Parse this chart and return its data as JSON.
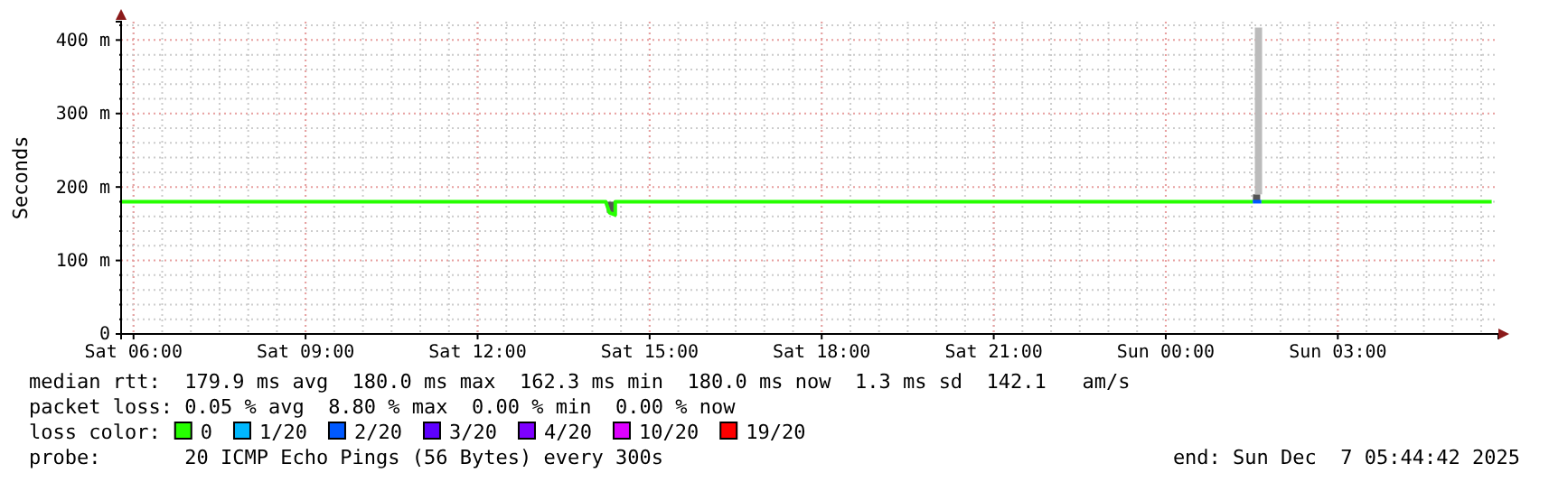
{
  "chart_data": {
    "type": "line",
    "ylabel": "Seconds",
    "xlim": [
      "2025-12-06T05:47",
      "2025-12-07T05:48"
    ],
    "xticks": [
      {
        "value": "2025-12-06T06:00",
        "label": "Sat 06:00"
      },
      {
        "value": "2025-12-06T09:00",
        "label": "Sat 09:00"
      },
      {
        "value": "2025-12-06T12:00",
        "label": "Sat 12:00"
      },
      {
        "value": "2025-12-06T15:00",
        "label": "Sat 15:00"
      },
      {
        "value": "2025-12-06T18:00",
        "label": "Sat 18:00"
      },
      {
        "value": "2025-12-06T21:00",
        "label": "Sat 21:00"
      },
      {
        "value": "2025-12-07T00:00",
        "label": "Sun 00:00"
      },
      {
        "value": "2025-12-07T03:00",
        "label": "Sun 03:00"
      }
    ],
    "ylim": [
      0,
      425
    ],
    "yticks": [
      0,
      {
        "value": 20,
        "label": null
      },
      {
        "value": 40,
        "label": null
      },
      {
        "value": 60,
        "label": null
      },
      {
        "value": 80,
        "label": null
      },
      {
        "value": 100,
        "label": "100 m"
      },
      {
        "value": 120,
        "label": null
      },
      {
        "value": 140,
        "label": null
      },
      {
        "value": 160,
        "label": null
      },
      {
        "value": 180,
        "label": null
      },
      {
        "value": 200,
        "label": "200 m"
      },
      {
        "value": 220,
        "label": null
      },
      {
        "value": 240,
        "label": null
      },
      {
        "value": 260,
        "label": null
      },
      {
        "value": 280,
        "label": null
      },
      {
        "value": 300,
        "label": "300 m"
      },
      {
        "value": 320,
        "label": null
      },
      {
        "value": 340,
        "label": null
      },
      {
        "value": 360,
        "label": null
      },
      {
        "value": 380,
        "label": null
      },
      {
        "value": 400,
        "label": "400 m"
      },
      {
        "value": 420,
        "label": null
      }
    ],
    "grid": true,
    "legend": "bottom",
    "legend_title": "loss color:",
    "series": [
      {
        "type": "bar",
        "x": [
          "2025-12-06T14:19",
          "2025-12-07T01:35",
          "2025-12-07T01:37"
        ],
        "base": [
          165,
          180,
          190
        ],
        "values": [
          15,
          10,
          227
        ],
        "colors": [
          "#555555",
          "#555555",
          "#bbbbbb"
        ]
      },
      {
        "name": "0",
        "color": "#26ff00",
        "x": [
          "2025-12-06T05:47",
          "2025-12-06T14:14",
          "2025-12-06T14:18",
          "2025-12-06T14:24",
          "2025-12-06T14:24",
          "2025-12-07T01:31",
          "2025-12-07T01:35",
          "2025-12-07T01:40",
          "2025-12-07T05:41"
        ],
        "values": [
          180,
          180,
          165,
          162,
          180,
          180,
          null,
          180,
          180
        ]
      },
      {
        "name": "1/20",
        "color": "#00b8ff"
      },
      {
        "name": "2/20",
        "color": "#0059ff",
        "x": [
          "2025-12-07T01:31",
          "2025-12-07T01:40"
        ],
        "values": [
          180,
          180
        ]
      },
      {
        "name": "3/20",
        "color": "#5e00ff"
      },
      {
        "name": "4/20",
        "color": "#7e00ff"
      },
      {
        "name": "10/20",
        "color": "#dd00ff"
      },
      {
        "name": "19/20",
        "color": "#ff0000"
      }
    ],
    "annotations": [
      "median rtt:  179.9 ms avg  180.0 ms max  162.3 ms min  180.0 ms now  1.3 ms sd  142.1   am/s",
      "packet loss: 0.05 % avg  8.80 % max  0.00 % min  0.00 % now",
      "probe:       20 ICMP Echo Pings (56 Bytes) every 300s",
      "end: Sun Dec  7 05:44:42 2025"
    ]
  }
}
